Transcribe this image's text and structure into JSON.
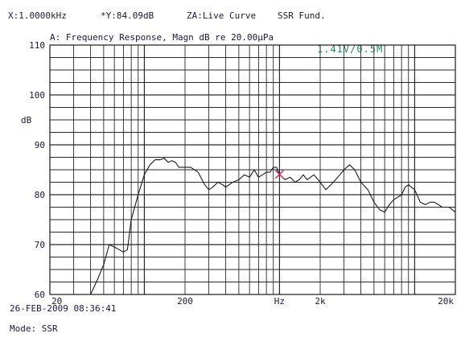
{
  "header": {
    "x_readout": "X:1.0000kHz",
    "y_readout": "*Y:84.09dB",
    "zone": "ZA:Live Curve",
    "mode_tag": "SSR Fund."
  },
  "subtitle": "A: Frequency Response, Magn dB re 20.00µPa",
  "annotation": "1.41V/0.5M",
  "footer": {
    "timestamp": "26-FEB-2009 08:36:41",
    "mode": "Mode: SSR"
  },
  "colors": {
    "curve": "#1a1a1a",
    "grid": "#2a2a2a",
    "cursor": "#d0206a",
    "annotation": "#1f8a5a"
  },
  "chart_data": {
    "type": "line",
    "title": "A: Frequency Response, Magn dB re 20.00µPa",
    "xlabel": "Hz",
    "ylabel": "dB",
    "x_scale": "log",
    "xlim": [
      20,
      20000
    ],
    "ylim": [
      60,
      110
    ],
    "y_ticks": [
      60,
      70,
      80,
      90,
      100,
      110
    ],
    "x_tick_labels": [
      {
        "value": 20,
        "label": "20"
      },
      {
        "value": 200,
        "label": "200"
      },
      {
        "value": 1000,
        "label": "Hz"
      },
      {
        "value": 2000,
        "label": "2k"
      },
      {
        "value": 20000,
        "label": "20k"
      }
    ],
    "grid": true,
    "cursor": {
      "x": 1000,
      "y": 84.09
    },
    "series": [
      {
        "x": [
          40,
          45,
          50,
          55,
          60,
          65,
          70,
          75,
          80,
          90,
          100,
          110,
          120,
          130,
          140,
          150,
          160,
          170,
          180,
          200,
          220,
          250,
          280,
          300,
          320,
          350,
          380,
          400,
          450,
          500,
          550,
          600,
          650,
          700,
          750,
          800,
          850,
          900,
          950,
          1000,
          1100,
          1200,
          1300,
          1400,
          1500,
          1600,
          1800,
          2000,
          2200,
          2400,
          2600,
          2800,
          3000,
          3300,
          3600,
          4000,
          4500,
          5000,
          5500,
          6000,
          6500,
          7000,
          7500,
          8000,
          8500,
          9000,
          10000,
          11000,
          12000,
          13000,
          14000,
          15000,
          16000,
          18000,
          20000
        ],
        "values": [
          60,
          63,
          66,
          70,
          69.5,
          69,
          68.5,
          69,
          75,
          80,
          84,
          86,
          87,
          87,
          87.3,
          86.5,
          86.8,
          86.5,
          85.5,
          85.5,
          85.5,
          84.5,
          82,
          81,
          81.5,
          82.5,
          82,
          81.5,
          82.5,
          83,
          84,
          83.5,
          85,
          83.5,
          84,
          84.5,
          84.5,
          85.5,
          85.5,
          84.1,
          83,
          83.5,
          82.5,
          83,
          84,
          83,
          84,
          82.5,
          81,
          82,
          83,
          84,
          85,
          86,
          85,
          82.5,
          81,
          78.5,
          77,
          76.5,
          78,
          79,
          79.5,
          80,
          81.5,
          82,
          81,
          78.5,
          78,
          78.5,
          78.5,
          78,
          77.5,
          77.5,
          76.5
        ]
      }
    ]
  }
}
